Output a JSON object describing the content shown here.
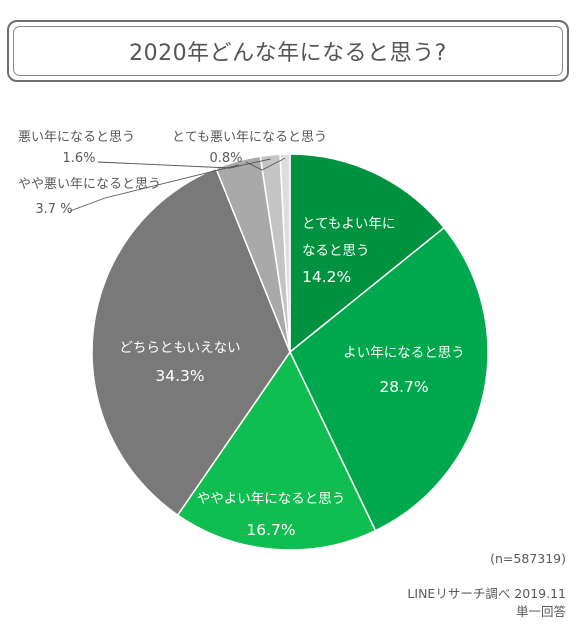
{
  "title": "2020年どんな年になると思う?",
  "chart_data": {
    "type": "pie",
    "title": "2020年どんな年になると思う?",
    "slices": [
      {
        "label": "とてもよい年になると思う",
        "value": 14.2,
        "value_label": "14.2%",
        "color": "#00923e"
      },
      {
        "label": "よい年になると思う",
        "value": 28.7,
        "value_label": "28.7%",
        "color": "#00a84d"
      },
      {
        "label": "ややよい年になると思う",
        "value": 16.7,
        "value_label": "16.7%",
        "color": "#10bd50"
      },
      {
        "label": "どちらともいえない",
        "value": 34.3,
        "value_label": "34.3%",
        "color": "#797979"
      },
      {
        "label": "やや悪い年になると思う",
        "value": 3.7,
        "value_label": "3.7 %",
        "color": "#a9a9a9"
      },
      {
        "label": "悪い年になると思う",
        "value": 1.6,
        "value_label": "1.6%",
        "color": "#c4c4c4"
      },
      {
        "label": "とても悪い年になると思う",
        "value": 0.8,
        "value_label": "0.8%",
        "color": "#dddddd"
      }
    ]
  },
  "footer": {
    "sample": "(n=587319)",
    "source": "LINEリサーチ調べ 2019.11",
    "method": "単一回答"
  }
}
